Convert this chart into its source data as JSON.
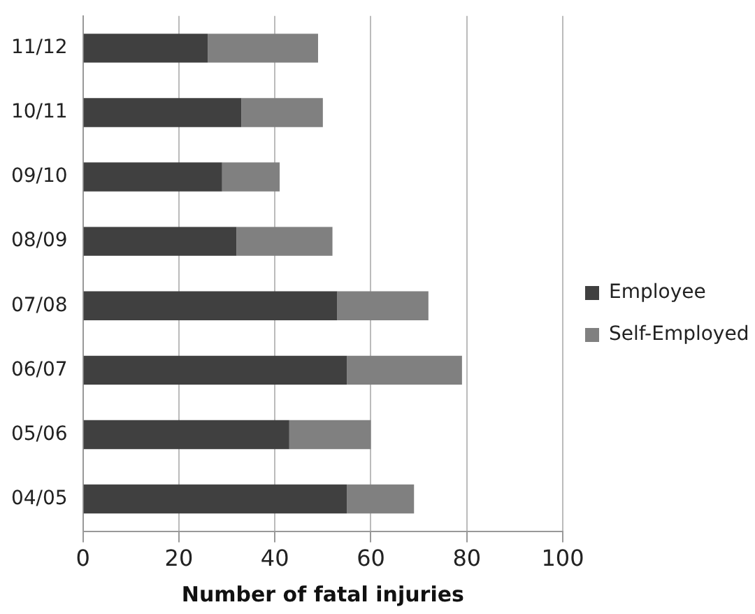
{
  "chart_data": {
    "type": "bar",
    "orientation": "horizontal",
    "stacked": true,
    "xlabel": "Number of fatal injuries",
    "categories": [
      "11/12",
      "10/11",
      "09/10",
      "08/09",
      "07/08",
      "06/07",
      "05/06",
      "04/05"
    ],
    "series": [
      {
        "name": "Employee",
        "color": "#404040",
        "values": [
          26,
          33,
          29,
          32,
          53,
          55,
          43,
          55
        ]
      },
      {
        "name": "Self-Employed",
        "color": "#808080",
        "values": [
          23,
          17,
          12,
          20,
          19,
          24,
          17,
          14
        ]
      }
    ],
    "xlim": [
      0,
      100
    ],
    "xticks": [
      0,
      20,
      40,
      60,
      80,
      100
    ],
    "grid": "x",
    "legend": "right"
  }
}
